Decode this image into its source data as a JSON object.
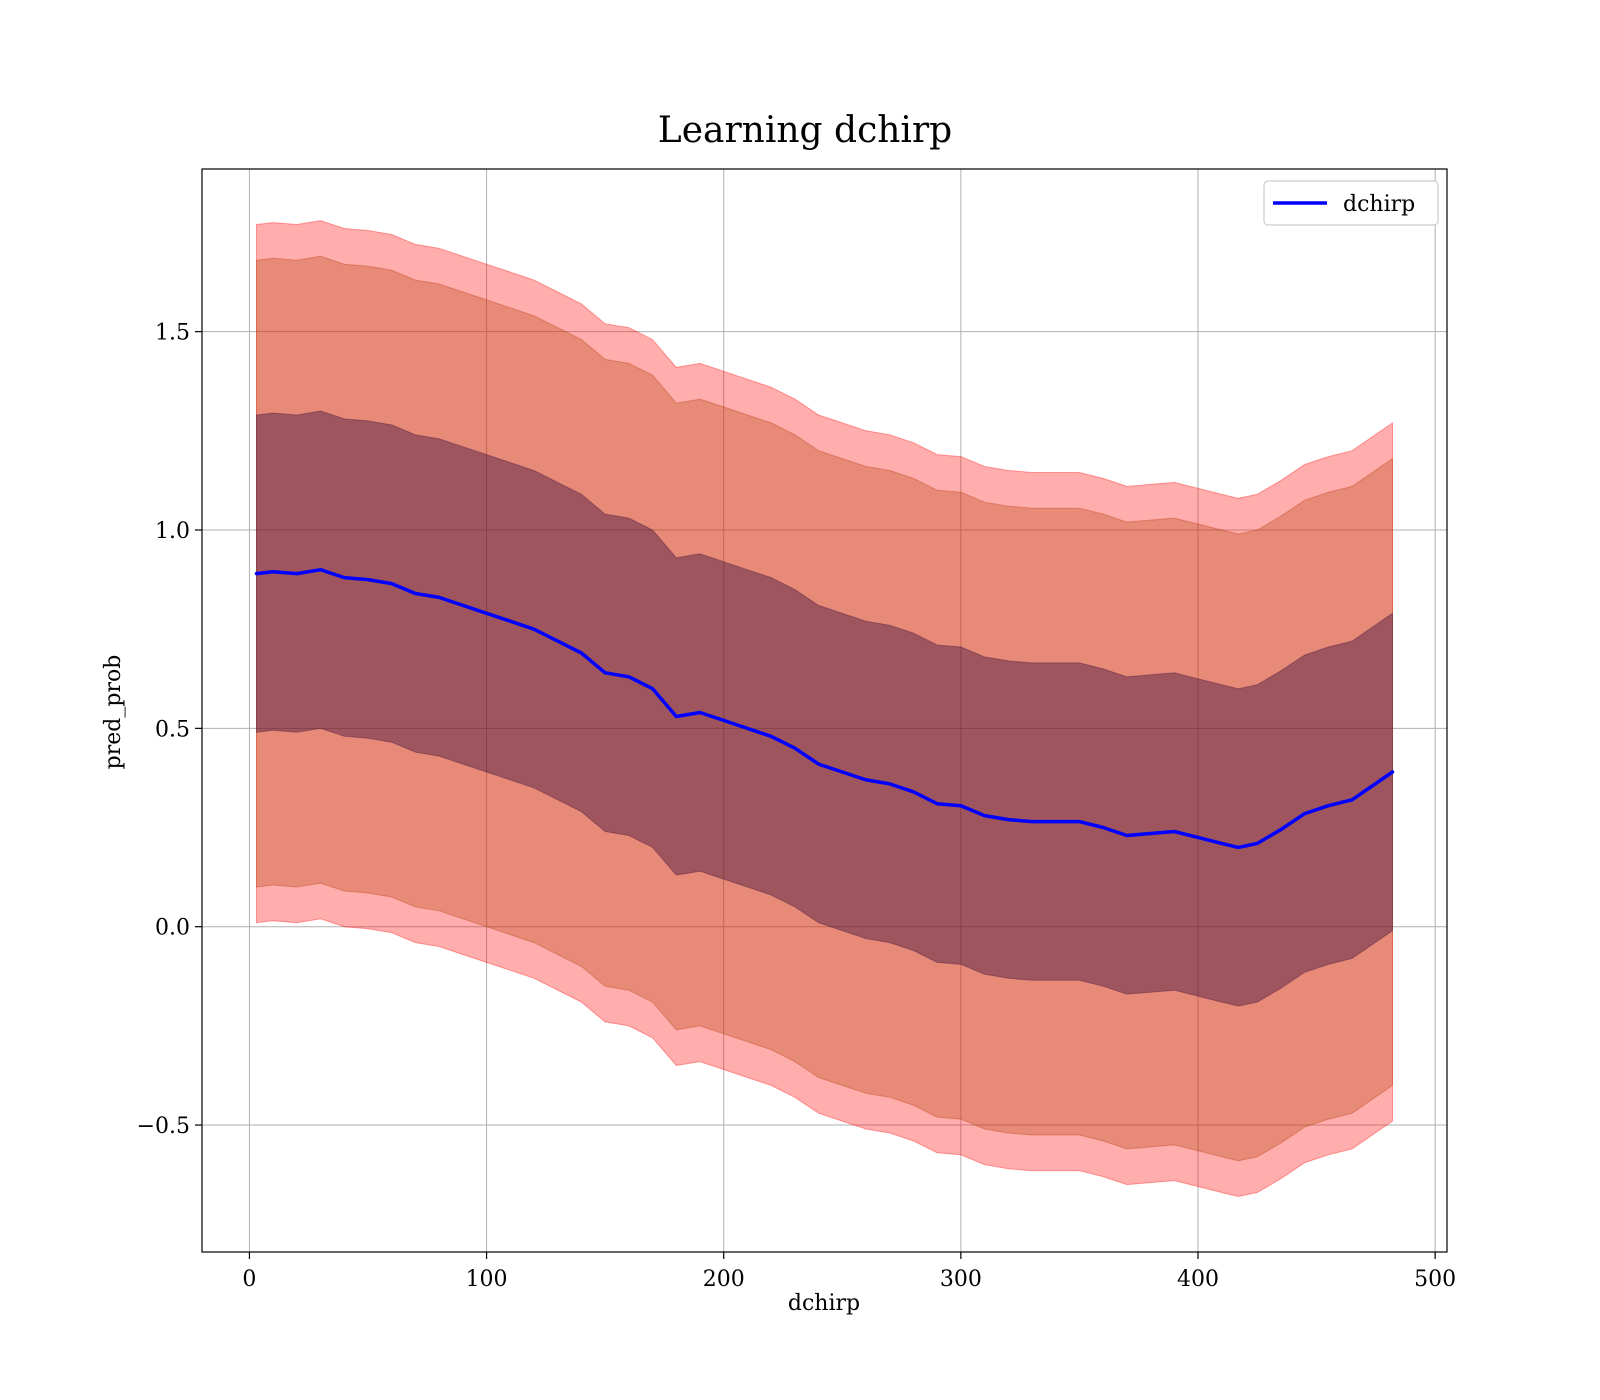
{
  "chart_data": {
    "type": "line",
    "title": "Learning dchirp",
    "xlabel": "dchirp",
    "ylabel": "pred_prob",
    "xlim": [
      -20,
      505
    ],
    "ylim": [
      -0.82,
      1.91
    ],
    "grid": true,
    "legend_position": "top-right",
    "x_ticks": [
      0,
      100,
      200,
      300,
      400,
      500
    ],
    "x_tick_labels": [
      "0",
      "100",
      "200",
      "300",
      "400",
      "500"
    ],
    "y_ticks": [
      -0.5,
      0.0,
      0.5,
      1.0,
      1.5
    ],
    "y_tick_labels": [
      "−0.5",
      "0.0",
      "0.5",
      "1.0",
      "1.5"
    ],
    "x": [
      3,
      10,
      20,
      30,
      40,
      50,
      60,
      70,
      80,
      90,
      100,
      110,
      120,
      130,
      140,
      150,
      160,
      170,
      180,
      190,
      200,
      210,
      220,
      230,
      240,
      250,
      260,
      270,
      280,
      290,
      300,
      310,
      320,
      330,
      340,
      350,
      360,
      370,
      380,
      390,
      400,
      410,
      417,
      425,
      435,
      445,
      455,
      465,
      482
    ],
    "series": [
      {
        "name": "dchirp",
        "color": "#0000ff",
        "values": [
          0.89,
          0.895,
          0.89,
          0.9,
          0.88,
          0.875,
          0.865,
          0.84,
          0.83,
          0.81,
          0.79,
          0.77,
          0.75,
          0.72,
          0.69,
          0.64,
          0.63,
          0.6,
          0.53,
          0.54,
          0.52,
          0.5,
          0.48,
          0.45,
          0.41,
          0.39,
          0.37,
          0.36,
          0.34,
          0.31,
          0.305,
          0.28,
          0.27,
          0.265,
          0.265,
          0.265,
          0.25,
          0.23,
          0.235,
          0.24,
          0.225,
          0.21,
          0.2,
          0.21,
          0.245,
          0.285,
          0.305,
          0.32,
          0.39
        ]
      }
    ],
    "bands": [
      {
        "label": "outer",
        "color": "#ff0000",
        "opacity": 0.32,
        "half_width": 0.88
      },
      {
        "label": "middle",
        "color": "#b33a00",
        "opacity": 0.3,
        "half_width": 0.79
      },
      {
        "label": "inner",
        "color": "#3a0d3a",
        "opacity": 0.42,
        "half_width": 0.4
      }
    ]
  }
}
